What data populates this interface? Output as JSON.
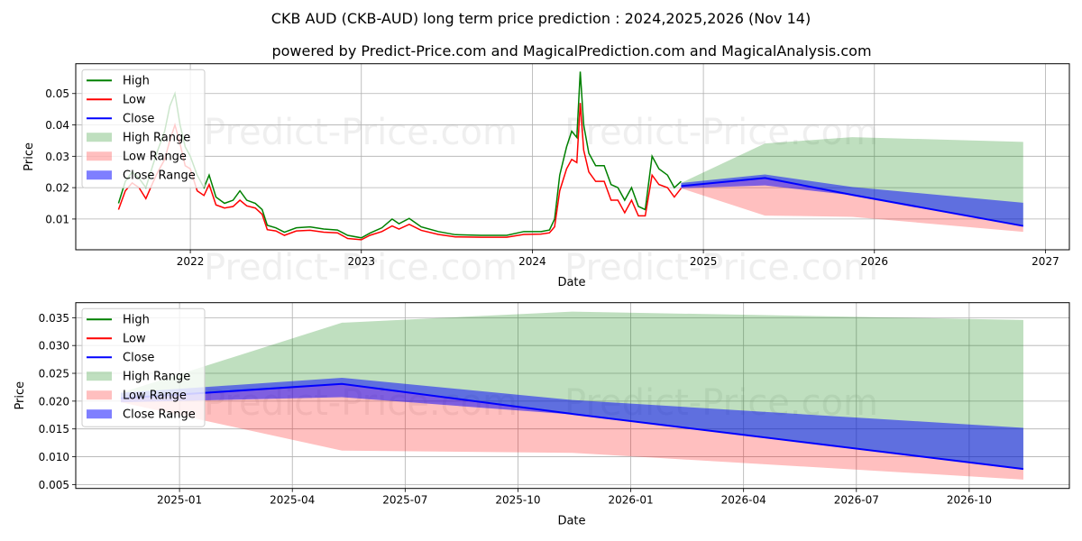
{
  "chart_data": {
    "title": "CKB AUD (CKB-AUD) long term price prediction : 2024,2025,2026 (Nov 14)",
    "subtitle": "powered by Predict-Price.com and MagicalPrediction.com and MagicalAnalysis.com",
    "watermark": "Predict-Price.com",
    "legend": [
      "High",
      "Low",
      "Close",
      "High Range",
      "Low Range",
      "Close Range"
    ],
    "legend_placement": "upper-left",
    "colors": {
      "high": "#008000",
      "low": "#ff0000",
      "close": "#0000ff",
      "high_range": "#008000",
      "low_range": "#ff0000",
      "close_range": "#0000ff"
    },
    "history": {
      "x": [
        2021.58,
        2021.62,
        2021.66,
        2021.7,
        2021.74,
        2021.78,
        2021.81,
        2021.85,
        2021.88,
        2021.91,
        2021.94,
        2021.97,
        2022.0,
        2022.04,
        2022.08,
        2022.11,
        2022.15,
        2022.2,
        2022.25,
        2022.29,
        2022.33,
        2022.38,
        2022.42,
        2022.45,
        2022.5,
        2022.55,
        2022.62,
        2022.7,
        2022.78,
        2022.86,
        2022.92,
        2023.0,
        2023.05,
        2023.12,
        2023.18,
        2023.22,
        2023.28,
        2023.35,
        2023.45,
        2023.55,
        2023.7,
        2023.85,
        2023.95,
        2024.05,
        2024.1,
        2024.13,
        2024.16,
        2024.2,
        2024.23,
        2024.26,
        2024.28,
        2024.3,
        2024.33,
        2024.37,
        2024.42,
        2024.46,
        2024.5,
        2024.54,
        2024.58,
        2024.62,
        2024.66,
        2024.7,
        2024.74,
        2024.79,
        2024.83,
        2024.87
      ],
      "high": [
        0.015,
        0.022,
        0.025,
        0.023,
        0.02,
        0.027,
        0.032,
        0.038,
        0.046,
        0.05,
        0.04,
        0.033,
        0.03,
        0.024,
        0.02,
        0.024,
        0.017,
        0.015,
        0.016,
        0.019,
        0.016,
        0.015,
        0.013,
        0.008,
        0.0072,
        0.0058,
        0.0072,
        0.0075,
        0.0068,
        0.0065,
        0.0048,
        0.004,
        0.0055,
        0.0072,
        0.01,
        0.0085,
        0.0102,
        0.0075,
        0.006,
        0.005,
        0.0048,
        0.0048,
        0.006,
        0.006,
        0.0065,
        0.01,
        0.024,
        0.033,
        0.038,
        0.036,
        0.057,
        0.04,
        0.031,
        0.027,
        0.027,
        0.021,
        0.02,
        0.016,
        0.02,
        0.014,
        0.013,
        0.03,
        0.026,
        0.024,
        0.02,
        0.022
      ],
      "low": [
        0.013,
        0.019,
        0.0215,
        0.02,
        0.0165,
        0.0215,
        0.025,
        0.029,
        0.035,
        0.04,
        0.034,
        0.027,
        0.026,
        0.019,
        0.0175,
        0.021,
        0.0145,
        0.0135,
        0.014,
        0.016,
        0.0142,
        0.0135,
        0.0115,
        0.0066,
        0.0062,
        0.0048,
        0.0062,
        0.0064,
        0.0058,
        0.0056,
        0.0038,
        0.0034,
        0.0048,
        0.006,
        0.0078,
        0.0068,
        0.0083,
        0.0064,
        0.0051,
        0.0043,
        0.0042,
        0.0042,
        0.0051,
        0.0052,
        0.0056,
        0.0075,
        0.019,
        0.026,
        0.029,
        0.028,
        0.047,
        0.032,
        0.025,
        0.022,
        0.022,
        0.016,
        0.016,
        0.012,
        0.016,
        0.011,
        0.011,
        0.024,
        0.021,
        0.02,
        0.017,
        0.0198
      ]
    },
    "forecast": {
      "dates": [
        "2024-11-14",
        "2025-05-14",
        "2025-11-14",
        "2026-11-14"
      ],
      "x": [
        2024.87,
        2025.36,
        2025.87,
        2026.87
      ],
      "close": [
        0.0205,
        0.0231,
        0.0177,
        0.0078
      ],
      "close_range_high": [
        0.0215,
        0.0242,
        0.0202,
        0.0152
      ],
      "close_range_low": [
        0.0198,
        0.0207,
        0.0176,
        0.0077
      ],
      "high_range": [
        0.0215,
        0.0341,
        0.0361,
        0.0346
      ],
      "low_range": [
        0.0198,
        0.0111,
        0.0107,
        0.0059
      ]
    },
    "charts": [
      {
        "type": "line",
        "xlabel": "Date",
        "ylabel": "Price",
        "xlim": [
          2021.33,
          2027.14
        ],
        "ylim": [
          0.0002,
          0.0595
        ],
        "xticks": [
          {
            "v": 2022,
            "label": "2022"
          },
          {
            "v": 2023,
            "label": "2023"
          },
          {
            "v": 2024,
            "label": "2024"
          },
          {
            "v": 2025,
            "label": "2025"
          },
          {
            "v": 2026,
            "label": "2026"
          },
          {
            "v": 2027,
            "label": "2027"
          }
        ],
        "yticks": [
          {
            "v": 0.01,
            "label": "0.01"
          },
          {
            "v": 0.02,
            "label": "0.02"
          },
          {
            "v": 0.03,
            "label": "0.03"
          },
          {
            "v": 0.04,
            "label": "0.04"
          },
          {
            "v": 0.05,
            "label": "0.05"
          }
        ],
        "grid": true,
        "show_history": true
      },
      {
        "type": "line",
        "xlabel": "Date",
        "ylabel": "Price",
        "xlim": [
          2024.77,
          2026.972
        ],
        "ylim": [
          0.0043,
          0.0377
        ],
        "xticks": [
          {
            "v": 2025.0,
            "label": "2025-01"
          },
          {
            "v": 2025.25,
            "label": "2025-04"
          },
          {
            "v": 2025.5,
            "label": "2025-07"
          },
          {
            "v": 2025.75,
            "label": "2025-10"
          },
          {
            "v": 2026.0,
            "label": "2026-01"
          },
          {
            "v": 2026.25,
            "label": "2026-04"
          },
          {
            "v": 2026.5,
            "label": "2026-07"
          },
          {
            "v": 2026.75,
            "label": "2026-10"
          }
        ],
        "yticks": [
          {
            "v": 0.005,
            "label": "0.005"
          },
          {
            "v": 0.01,
            "label": "0.010"
          },
          {
            "v": 0.015,
            "label": "0.015"
          },
          {
            "v": 0.02,
            "label": "0.020"
          },
          {
            "v": 0.025,
            "label": "0.025"
          },
          {
            "v": 0.03,
            "label": "0.030"
          },
          {
            "v": 0.035,
            "label": "0.035"
          }
        ],
        "grid": true,
        "show_history": false
      }
    ]
  }
}
